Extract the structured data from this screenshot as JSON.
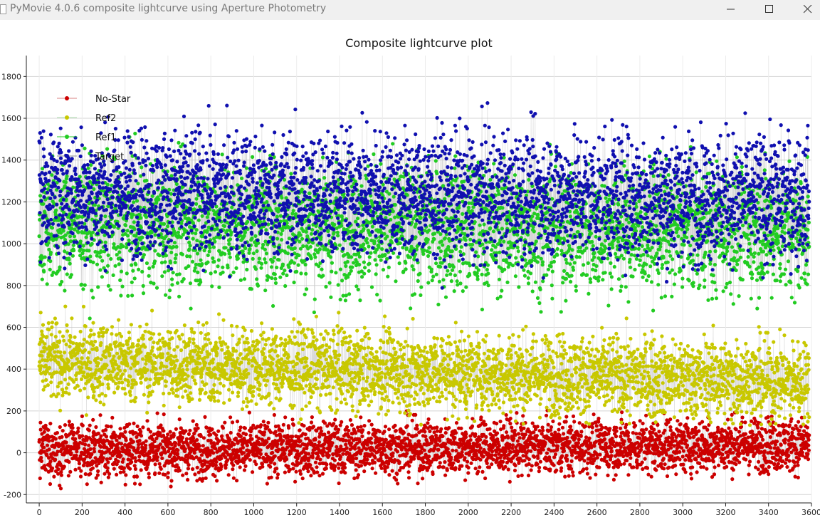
{
  "window": {
    "title": "PyMovie 4.0.6 composite lightcurve using Aperture Photometry",
    "buttons": {
      "minimize": "minimize",
      "maximize": "maximize",
      "close": "close"
    }
  },
  "chart_data": {
    "type": "scatter",
    "title": "Composite lightcurve plot",
    "xlabel": "",
    "ylabel": "",
    "xlim": [
      -60,
      3600
    ],
    "ylim": [
      -240,
      1900
    ],
    "x_ticks": [
      0,
      200,
      400,
      600,
      800,
      1000,
      1200,
      1400,
      1600,
      1800,
      2000,
      2200,
      2400,
      2600,
      2800,
      3000,
      3200,
      3400,
      3600
    ],
    "y_ticks": [
      -200,
      0,
      200,
      400,
      600,
      800,
      1000,
      1200,
      1400,
      1600,
      1800
    ],
    "grid": true,
    "legend_position": "top-left",
    "points_per_series": 3590,
    "connect_line_color": "#c8c8c8",
    "series": [
      {
        "name": "No-Star",
        "color": "#cc0000",
        "mean_start": 10,
        "mean_end": 40,
        "spread": 65,
        "min": -180,
        "max": 220,
        "line_in_legend": "#d88080"
      },
      {
        "name": "Ref2",
        "color": "#c8c800",
        "mean_start": 440,
        "mean_end": 340,
        "spread": 95,
        "min": 130,
        "max": 790,
        "line_in_legend": "#b0e0b0"
      },
      {
        "name": "Ref1",
        "color": "#22cc22",
        "mean_start": 1090,
        "mean_end": 1060,
        "spread": 150,
        "min": 640,
        "max": 1750,
        "line_in_legend": "#22cc22"
      },
      {
        "name": "Target",
        "color": "#1010b0",
        "mean_start": 1250,
        "mean_end": 1220,
        "spread": 150,
        "min": 730,
        "max": 1820,
        "line_in_legend": "#909090"
      }
    ],
    "legend": [
      "No-Star",
      "Ref2",
      "Ref1",
      "Target"
    ]
  }
}
